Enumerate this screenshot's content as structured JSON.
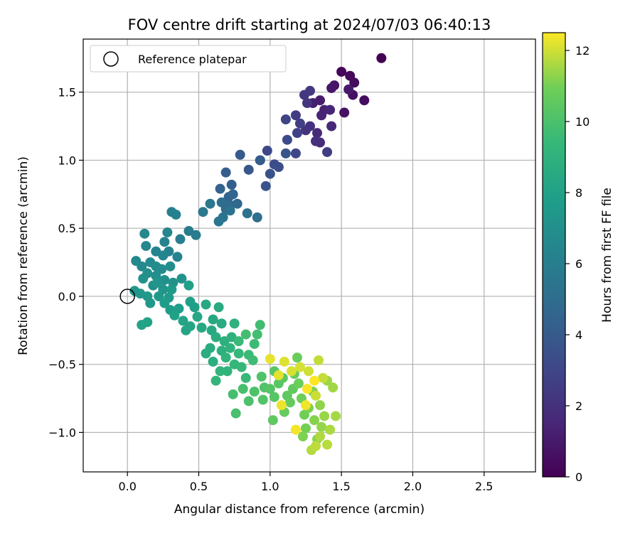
{
  "chart_data": {
    "type": "scatter",
    "title": "FOV centre drift starting at 2024/07/03 06:40:13",
    "xlabel": "Angular distance from reference (arcmin)",
    "ylabel": "Rotation from reference (arcmin)",
    "xlim": [
      -0.31,
      2.86
    ],
    "ylim": [
      -1.29,
      1.89
    ],
    "xticks": [
      0.0,
      0.5,
      1.0,
      1.5,
      2.0,
      2.5
    ],
    "xtick_labels": [
      "0.0",
      "0.5",
      "1.0",
      "1.5",
      "2.0",
      "2.5"
    ],
    "yticks": [
      -1.0,
      -0.5,
      0.0,
      0.5,
      1.0,
      1.5
    ],
    "ytick_labels": [
      "−1.0",
      "−0.5",
      "0.0",
      "0.5",
      "1.0",
      "1.5"
    ],
    "grid": true,
    "legend": {
      "position": "top-left",
      "entries": [
        "Reference platepar"
      ]
    },
    "colorbar": {
      "label": "Hours from first FF file",
      "range": [
        0,
        12.5
      ],
      "ticks": [
        0,
        2,
        4,
        6,
        8,
        10,
        12
      ],
      "tick_labels": [
        "0",
        "2",
        "4",
        "6",
        "8",
        "10",
        "12"
      ],
      "colormap": "viridis"
    },
    "reference": {
      "x": 0.0,
      "y": 0.0
    },
    "series": [
      {
        "name": "FF files",
        "points": [
          [
            1.78,
            1.75,
            0.0
          ],
          [
            1.5,
            1.65,
            0.2
          ],
          [
            1.56,
            1.62,
            0.3
          ],
          [
            1.59,
            1.57,
            0.4
          ],
          [
            1.66,
            1.44,
            0.5
          ],
          [
            1.58,
            1.48,
            0.6
          ],
          [
            1.52,
            1.35,
            0.7
          ],
          [
            1.45,
            1.55,
            0.8
          ],
          [
            1.43,
            1.53,
            0.9
          ],
          [
            1.55,
            1.52,
            1.0
          ],
          [
            1.35,
            1.44,
            1.1
          ],
          [
            1.3,
            1.42,
            1.2
          ],
          [
            1.38,
            1.37,
            1.3
          ],
          [
            1.36,
            1.33,
            1.4
          ],
          [
            1.42,
            1.37,
            1.5
          ],
          [
            1.43,
            1.25,
            1.6
          ],
          [
            1.33,
            1.2,
            1.7
          ],
          [
            1.35,
            1.13,
            1.8
          ],
          [
            1.32,
            1.14,
            1.9
          ],
          [
            1.28,
            1.25,
            2.0
          ],
          [
            1.25,
            1.22,
            2.1
          ],
          [
            1.26,
            1.42,
            2.2
          ],
          [
            1.24,
            1.48,
            2.3
          ],
          [
            1.28,
            1.51,
            2.4
          ],
          [
            1.18,
            1.33,
            2.5
          ],
          [
            1.4,
            1.06,
            2.6
          ],
          [
            1.21,
            1.27,
            2.7
          ],
          [
            1.19,
            1.2,
            2.8
          ],
          [
            1.11,
            1.3,
            2.9
          ],
          [
            1.18,
            1.05,
            3.0
          ],
          [
            0.98,
            1.07,
            3.1
          ],
          [
            1.12,
            1.15,
            3.2
          ],
          [
            1.03,
            0.97,
            3.3
          ],
          [
            1.06,
            0.95,
            3.4
          ],
          [
            0.93,
            1.0,
            3.5
          ],
          [
            1.0,
            0.9,
            3.6
          ],
          [
            0.97,
            0.81,
            3.7
          ],
          [
            1.11,
            1.05,
            3.8
          ],
          [
            0.85,
            0.93,
            3.9
          ],
          [
            0.79,
            1.04,
            4.0
          ],
          [
            0.93,
            1.0,
            4.1
          ],
          [
            0.69,
            0.91,
            4.2
          ],
          [
            0.73,
            0.82,
            4.3
          ],
          [
            0.71,
            0.73,
            4.4
          ],
          [
            0.65,
            0.79,
            4.5
          ],
          [
            0.74,
            0.75,
            4.6
          ],
          [
            0.77,
            0.68,
            4.7
          ],
          [
            0.72,
            0.67,
            4.8
          ],
          [
            0.69,
            0.64,
            4.9
          ],
          [
            0.66,
            0.69,
            5.0
          ],
          [
            0.91,
            0.58,
            5.1
          ],
          [
            0.84,
            0.61,
            5.2
          ],
          [
            0.72,
            0.63,
            5.3
          ],
          [
            0.67,
            0.58,
            5.4
          ],
          [
            0.64,
            0.55,
            5.5
          ],
          [
            0.58,
            0.68,
            5.6
          ],
          [
            0.53,
            0.62,
            5.7
          ],
          [
            0.43,
            0.48,
            5.8
          ],
          [
            0.48,
            0.45,
            5.9
          ],
          [
            0.37,
            0.42,
            6.0
          ],
          [
            0.34,
            0.6,
            6.1
          ],
          [
            0.31,
            0.62,
            6.15
          ],
          [
            0.29,
            0.33,
            6.2
          ],
          [
            0.35,
            0.29,
            6.25
          ],
          [
            0.26,
            0.4,
            6.3
          ],
          [
            0.2,
            0.33,
            6.35
          ],
          [
            0.25,
            0.3,
            6.4
          ],
          [
            0.28,
            0.47,
            6.45
          ],
          [
            0.13,
            0.37,
            6.5
          ],
          [
            0.12,
            0.46,
            6.55
          ],
          [
            0.06,
            0.26,
            6.6
          ],
          [
            0.1,
            0.22,
            6.65
          ],
          [
            0.16,
            0.25,
            6.7
          ],
          [
            0.2,
            0.22,
            6.75
          ],
          [
            0.24,
            0.2,
            6.8
          ],
          [
            0.3,
            0.22,
            6.85
          ],
          [
            0.14,
            0.17,
            6.9
          ],
          [
            0.2,
            0.15,
            6.95
          ],
          [
            0.26,
            0.12,
            7.0
          ],
          [
            0.18,
            0.08,
            7.05
          ],
          [
            0.11,
            0.13,
            7.1
          ],
          [
            0.32,
            0.1,
            7.15
          ],
          [
            0.38,
            0.13,
            7.2
          ],
          [
            0.25,
            0.05,
            7.25
          ],
          [
            0.21,
            0.1,
            7.3
          ],
          [
            0.05,
            0.04,
            7.35
          ],
          [
            0.09,
            0.02,
            7.4
          ],
          [
            0.14,
            0.0,
            7.45
          ],
          [
            0.16,
            -0.05,
            7.5
          ],
          [
            0.22,
            0.0,
            7.55
          ],
          [
            0.29,
            -0.01,
            7.6
          ],
          [
            0.31,
            0.05,
            7.65
          ],
          [
            0.26,
            -0.05,
            7.7
          ],
          [
            0.3,
            -0.1,
            7.75
          ],
          [
            0.36,
            -0.09,
            7.8
          ],
          [
            0.44,
            -0.04,
            7.85
          ],
          [
            0.47,
            -0.08,
            7.9
          ],
          [
            0.43,
            0.08,
            7.95
          ],
          [
            0.33,
            -0.14,
            8.0
          ],
          [
            0.1,
            -0.21,
            8.05
          ],
          [
            0.14,
            -0.19,
            8.1
          ],
          [
            0.39,
            -0.18,
            8.15
          ],
          [
            0.44,
            -0.22,
            8.2
          ],
          [
            0.41,
            -0.25,
            8.25
          ],
          [
            0.49,
            -0.15,
            8.3
          ],
          [
            0.52,
            -0.23,
            8.35
          ],
          [
            0.55,
            -0.06,
            8.4
          ],
          [
            0.6,
            -0.17,
            8.45
          ],
          [
            0.59,
            -0.25,
            8.5
          ],
          [
            0.64,
            -0.08,
            8.55
          ],
          [
            0.66,
            -0.2,
            8.6
          ],
          [
            0.62,
            -0.3,
            8.65
          ],
          [
            0.58,
            -0.38,
            8.7
          ],
          [
            0.55,
            -0.42,
            8.75
          ],
          [
            0.6,
            -0.48,
            8.8
          ],
          [
            0.66,
            -0.4,
            8.85
          ],
          [
            0.68,
            -0.33,
            8.9
          ],
          [
            0.73,
            -0.3,
            8.95
          ],
          [
            0.75,
            -0.2,
            9.0
          ],
          [
            0.72,
            -0.38,
            9.05
          ],
          [
            0.69,
            -0.45,
            9.1
          ],
          [
            0.7,
            -0.55,
            9.15
          ],
          [
            0.65,
            -0.55,
            9.2
          ],
          [
            0.62,
            -0.62,
            9.25
          ],
          [
            0.75,
            -0.5,
            9.3
          ],
          [
            0.78,
            -0.42,
            9.35
          ],
          [
            0.8,
            -0.52,
            9.4
          ],
          [
            0.83,
            -0.6,
            9.45
          ],
          [
            0.78,
            -0.33,
            9.5
          ],
          [
            0.85,
            -0.43,
            9.55
          ],
          [
            0.89,
            -0.35,
            9.6
          ],
          [
            0.88,
            -0.47,
            9.65
          ],
          [
            0.93,
            -0.21,
            9.7
          ],
          [
            0.91,
            -0.28,
            9.75
          ],
          [
            0.83,
            -0.28,
            9.8
          ],
          [
            0.74,
            -0.72,
            9.85
          ],
          [
            0.81,
            -0.68,
            9.9
          ],
          [
            0.76,
            -0.86,
            9.95
          ],
          [
            0.85,
            -0.77,
            10.0
          ],
          [
            0.89,
            -0.7,
            10.05
          ],
          [
            0.94,
            -0.59,
            10.1
          ],
          [
            0.96,
            -0.67,
            10.15
          ],
          [
            0.95,
            -0.76,
            10.2
          ],
          [
            1.0,
            -0.68,
            10.25
          ],
          [
            1.03,
            -0.74,
            10.3
          ],
          [
            1.06,
            -0.64,
            10.35
          ],
          [
            1.03,
            -0.55,
            10.4
          ],
          [
            1.09,
            -0.6,
            10.45
          ],
          [
            1.02,
            -0.91,
            10.5
          ],
          [
            1.12,
            -0.73,
            10.55
          ],
          [
            1.16,
            -0.68,
            10.6
          ],
          [
            1.14,
            -0.78,
            10.65
          ],
          [
            1.1,
            -0.85,
            10.7
          ],
          [
            1.17,
            -0.57,
            10.75
          ],
          [
            1.19,
            -0.45,
            10.8
          ],
          [
            1.2,
            -0.64,
            10.85
          ],
          [
            1.22,
            -0.75,
            10.9
          ],
          [
            1.24,
            -0.87,
            10.95
          ],
          [
            1.25,
            -0.97,
            11.0
          ],
          [
            1.27,
            -0.82,
            11.05
          ],
          [
            1.23,
            -1.03,
            11.1
          ],
          [
            1.3,
            -0.7,
            11.15
          ],
          [
            1.31,
            -0.91,
            11.2
          ],
          [
            1.33,
            -1.05,
            11.25
          ],
          [
            1.35,
            -0.8,
            11.3
          ],
          [
            1.36,
            -0.96,
            11.35
          ],
          [
            1.38,
            -0.88,
            11.4
          ],
          [
            1.4,
            -0.62,
            11.45
          ],
          [
            1.44,
            -0.67,
            11.5
          ],
          [
            1.46,
            -0.88,
            11.55
          ],
          [
            1.42,
            -0.98,
            11.6
          ],
          [
            1.35,
            -1.03,
            11.65
          ],
          [
            1.29,
            -1.13,
            11.7
          ],
          [
            1.4,
            -1.09,
            11.75
          ],
          [
            1.32,
            -1.1,
            11.8
          ],
          [
            1.34,
            -0.47,
            11.85
          ],
          [
            1.37,
            -0.6,
            11.9
          ],
          [
            1.32,
            -0.73,
            11.95
          ],
          [
            1.27,
            -0.55,
            12.0
          ],
          [
            1.21,
            -0.52,
            12.05
          ],
          [
            1.15,
            -0.55,
            12.1
          ],
          [
            1.1,
            -0.48,
            12.15
          ],
          [
            1.06,
            -0.58,
            12.2
          ],
          [
            1.0,
            -0.46,
            12.25
          ],
          [
            1.08,
            -0.8,
            12.3
          ],
          [
            1.25,
            -0.8,
            12.35
          ],
          [
            1.18,
            -0.98,
            12.4
          ],
          [
            1.26,
            -0.68,
            12.45
          ],
          [
            1.31,
            -0.62,
            12.5
          ]
        ]
      }
    ]
  }
}
